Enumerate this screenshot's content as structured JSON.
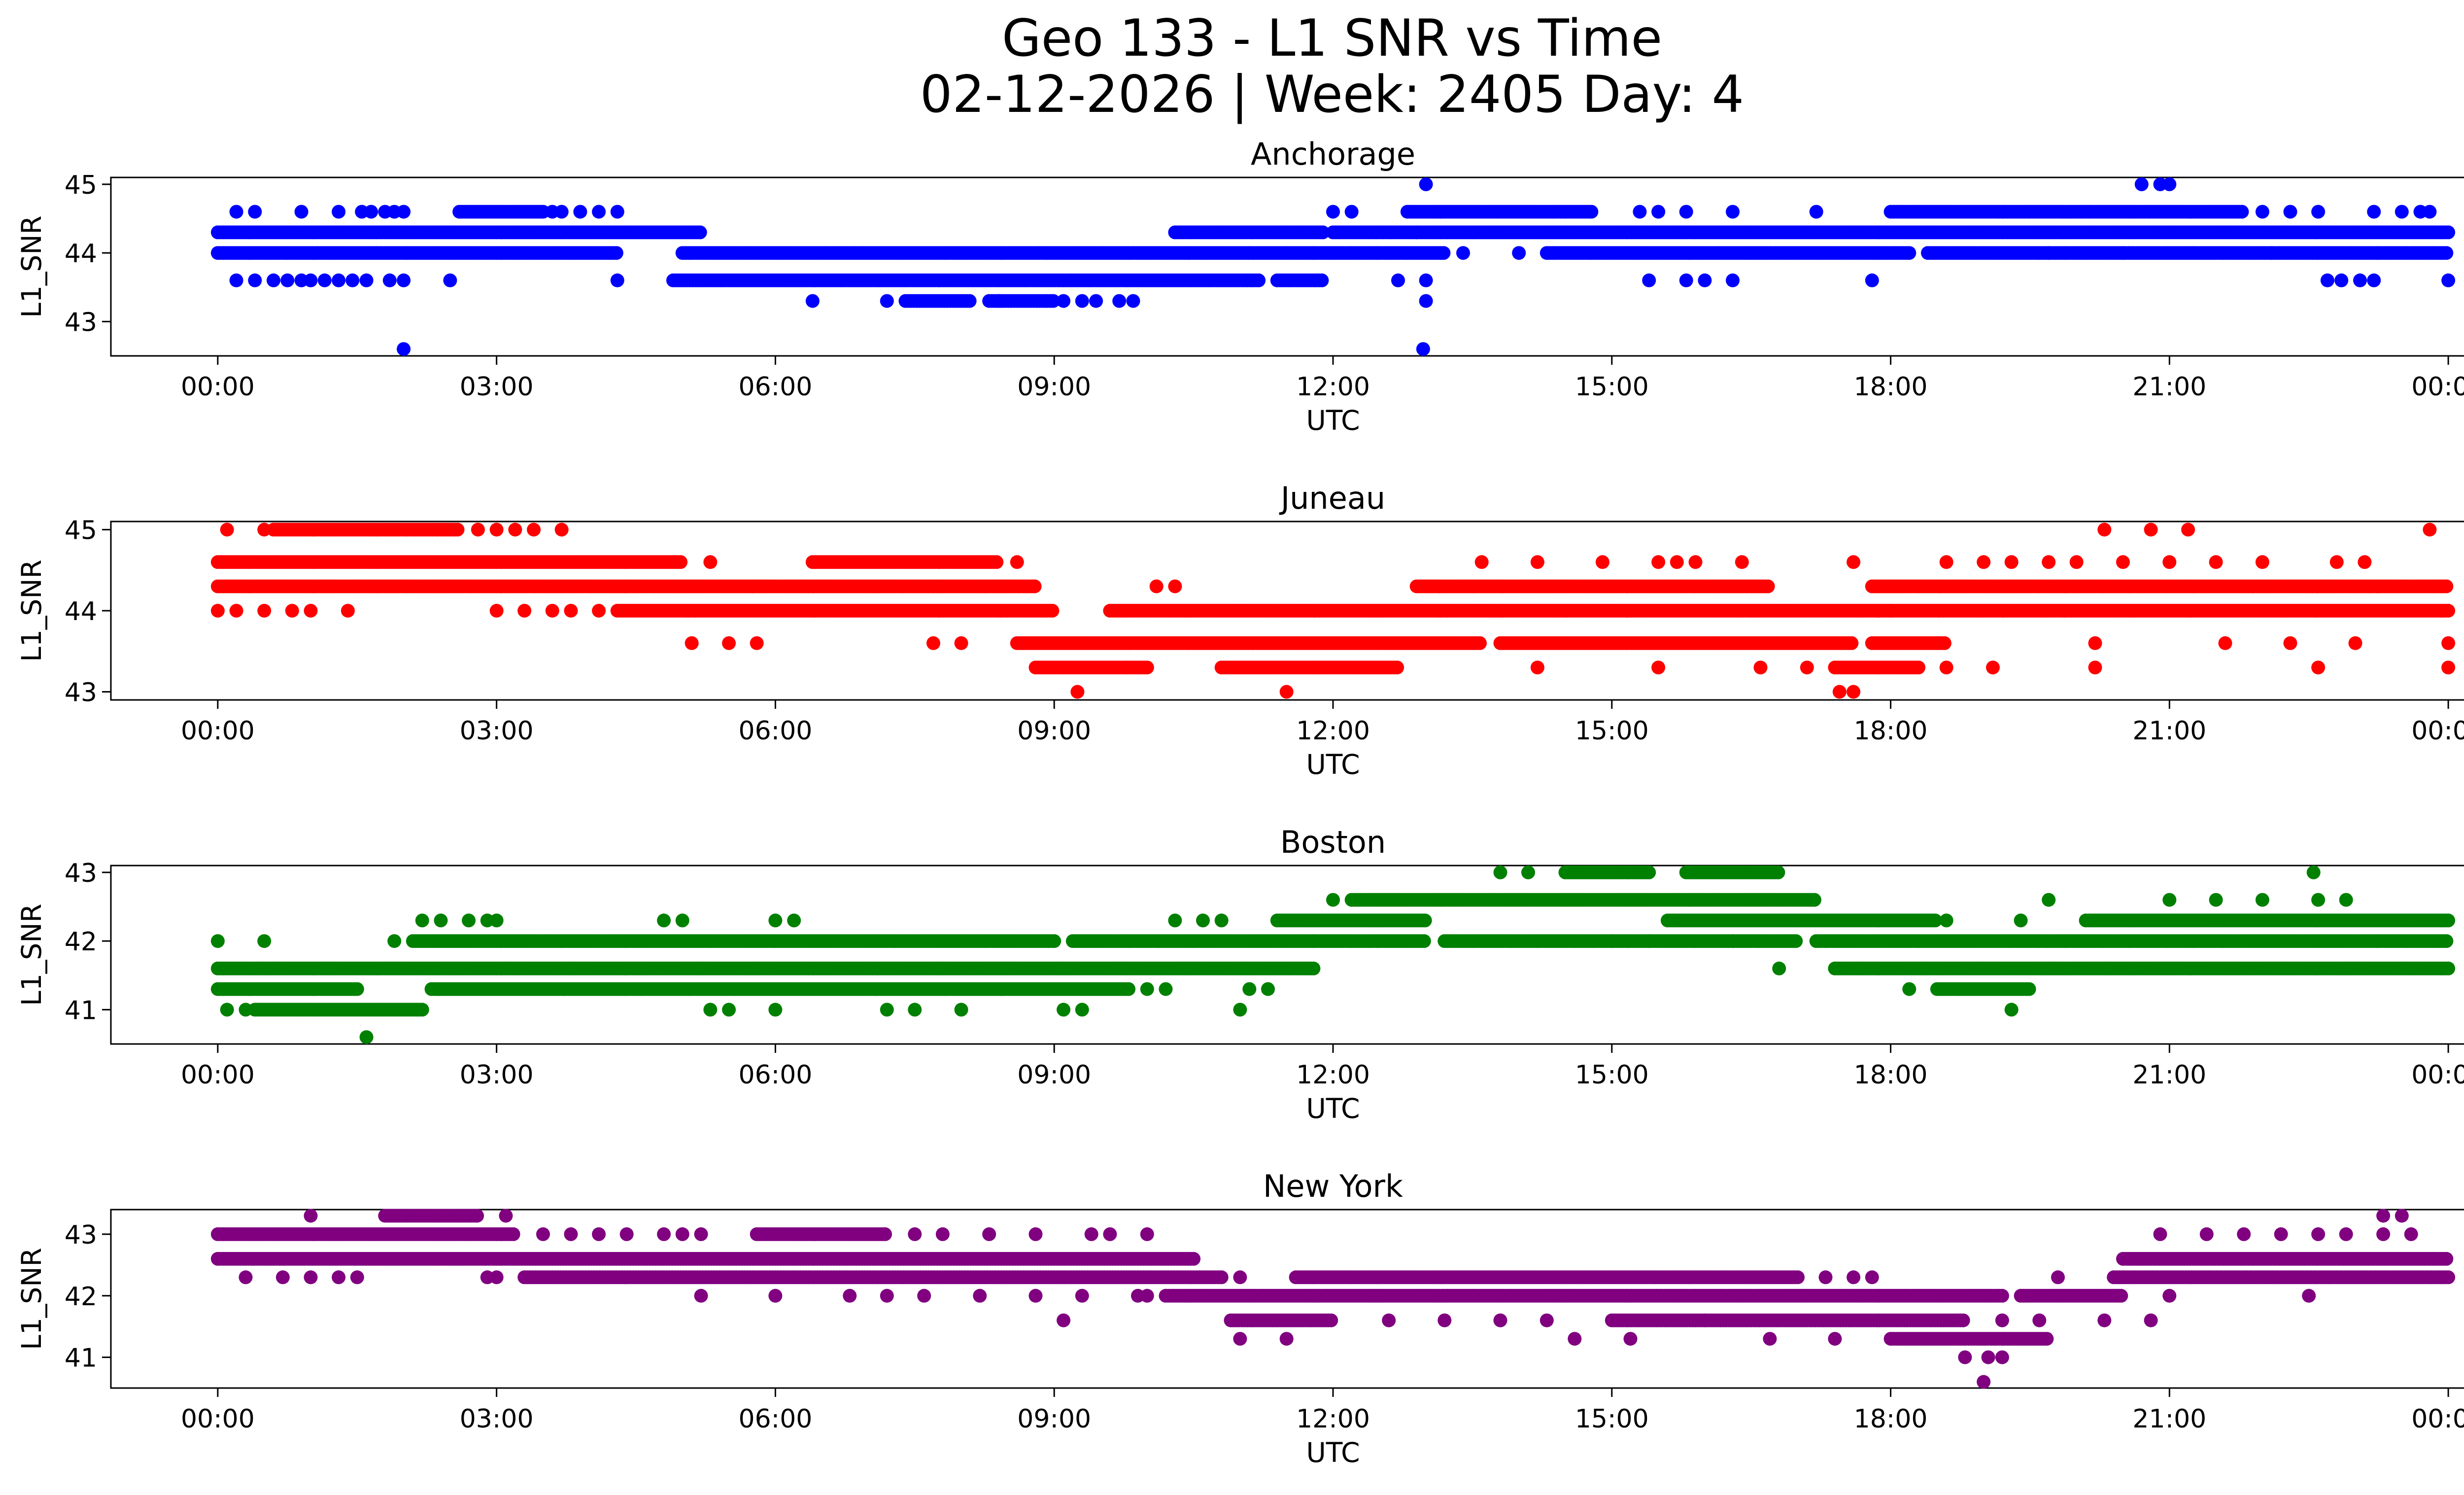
{
  "chart_data": {
    "type": "scatter",
    "title": "Geo 133 - L1 SNR vs Time",
    "subtitle": "02-12-2026 | Week: 2405 Day: 4",
    "xlabel": "UTC",
    "x_ticks": [
      "00:00",
      "03:00",
      "06:00",
      "09:00",
      "12:00",
      "15:00",
      "18:00",
      "21:00",
      "00:00"
    ],
    "x_range_hours": [
      -1.15,
      25.15
    ],
    "panels": [
      {
        "name": "Anchorage",
        "title": "Anchorage",
        "ylabel": "L1_SNR",
        "color": "#0000ff",
        "ylim": [
          42.5,
          45.1
        ],
        "yticks": [
          43,
          44,
          45
        ],
        "level_points": [
          {
            "y": 44.3,
            "segments": [
              [
                0.0,
                5.2
              ],
              [
                10.3,
                11.9
              ],
              [
                12.0,
                24.0
              ]
            ],
            "sparse": [
              12.9
            ]
          },
          {
            "y": 44.0,
            "segments": [
              [
                0.0,
                4.3
              ],
              [
                5.0,
                13.2
              ],
              [
                14.3,
                18.2
              ],
              [
                18.4,
                24.0
              ]
            ],
            "sparse": [
              13.4,
              14.0,
              19.7,
              20.5,
              22.1
            ]
          },
          {
            "y": 43.6,
            "segments": [
              [
                4.9,
                11.2
              ],
              [
                11.4,
                11.9
              ]
            ],
            "sparse": [
              0.2,
              0.4,
              0.6,
              0.75,
              0.9,
              1.0,
              1.15,
              1.3,
              1.45,
              1.6,
              1.85,
              2.0,
              2.5,
              4.3,
              12.7,
              13.0,
              15.4,
              15.8,
              16.0,
              16.3,
              17.8,
              22.7,
              22.85,
              23.05,
              23.2,
              24.0
            ]
          },
          {
            "y": 44.6,
            "segments": [
              [
                2.6,
                3.5
              ],
              [
                12.8,
                14.8
              ],
              [
                18.0,
                21.8
              ]
            ],
            "sparse": [
              0.2,
              0.4,
              0.9,
              1.3,
              1.55,
              1.65,
              1.8,
              1.9,
              2.0,
              3.6,
              3.7,
              3.9,
              4.1,
              4.3,
              12.0,
              12.2,
              15.3,
              15.5,
              15.8,
              16.3,
              17.2,
              22.0,
              22.3,
              22.6,
              23.2,
              23.5,
              23.7,
              23.8
            ]
          },
          {
            "y": 43.3,
            "segments": [
              [
                7.4,
                8.1
              ],
              [
                8.3,
                9.0
              ]
            ],
            "sparse": [
              6.4,
              7.2,
              8.4,
              9.1,
              9.3,
              9.45,
              9.7,
              9.85,
              13.0
            ]
          },
          {
            "y": 45.0,
            "segments": [],
            "sparse": [
              13.0,
              20.7,
              20.9,
              21.0
            ]
          },
          {
            "y": 42.6,
            "segments": [],
            "sparse": [
              2.0,
              12.97
            ]
          }
        ]
      },
      {
        "name": "Juneau",
        "title": "Juneau",
        "ylabel": "L1_SNR",
        "color": "#ff0000",
        "ylim": [
          42.9,
          45.1
        ],
        "yticks": [
          43,
          44,
          45
        ],
        "level_points": [
          {
            "y": 44.3,
            "segments": [
              [
                0.0,
                8.8
              ],
              [
                12.9,
                16.7
              ],
              [
                17.8,
                24.0
              ]
            ],
            "sparse": [
              10.1,
              10.3
            ]
          },
          {
            "y": 44.6,
            "segments": [
              [
                0.0,
                5.0
              ],
              [
                6.4,
                8.4
              ]
            ],
            "sparse": [
              5.3,
              8.6,
              13.6,
              14.2,
              14.9,
              15.5,
              15.7,
              15.9,
              16.4,
              17.6,
              18.6,
              19.0,
              19.3,
              19.7,
              20.0,
              20.5,
              21.0,
              21.5,
              22.0,
              22.8,
              23.1
            ]
          },
          {
            "y": 44.0,
            "segments": [
              [
                4.3,
                9.0
              ],
              [
                9.6,
                18.0
              ],
              [
                18.0,
                24.0
              ]
            ],
            "sparse": [
              0.0,
              0.2,
              0.5,
              0.8,
              1.0,
              1.4,
              3.0,
              3.3,
              3.6,
              3.8,
              4.1
            ]
          },
          {
            "y": 43.6,
            "segments": [
              [
                8.6,
                13.6
              ],
              [
                13.8,
                17.6
              ],
              [
                17.8,
                18.6
              ]
            ],
            "sparse": [
              5.1,
              5.5,
              5.8,
              7.7,
              8.0,
              20.2,
              21.6,
              22.3,
              23.0,
              24.0
            ]
          },
          {
            "y": 45.0,
            "segments": [
              [
                0.6,
                2.6
              ]
            ],
            "sparse": [
              0.1,
              0.5,
              2.8,
              3.0,
              3.2,
              3.4,
              3.7,
              20.3,
              20.8,
              21.2,
              23.8
            ]
          },
          {
            "y": 43.3,
            "segments": [
              [
                8.8,
                10.0
              ],
              [
                10.8,
                12.7
              ],
              [
                17.4,
                18.3
              ]
            ],
            "sparse": [
              14.2,
              15.5,
              16.6,
              17.1,
              18.6,
              19.1,
              20.2,
              22.6,
              24.0
            ]
          },
          {
            "y": 43.0,
            "segments": [],
            "sparse": [
              9.25,
              11.5,
              17.45,
              17.6
            ]
          }
        ]
      },
      {
        "name": "Boston",
        "title": "Boston",
        "ylabel": "L1_SNR",
        "color": "#008000",
        "ylim": [
          40.5,
          43.1
        ],
        "yticks": [
          41,
          42,
          43
        ],
        "level_points": [
          {
            "y": 41.6,
            "segments": [
              [
                0.0,
                11.8
              ],
              [
                17.4,
                24.0
              ]
            ],
            "sparse": [
              16.8
            ]
          },
          {
            "y": 42.0,
            "segments": [
              [
                2.1,
                9.0
              ],
              [
                9.2,
                13.0
              ],
              [
                13.2,
                17.0
              ],
              [
                17.2,
                24.0
              ]
            ],
            "sparse": [
              0.0,
              0.5,
              1.9,
              15.0,
              15.4,
              16.3
            ]
          },
          {
            "y": 41.3,
            "segments": [
              [
                0.0,
                1.5
              ],
              [
                2.3,
                9.8
              ],
              [
                18.5,
                19.5
              ]
            ],
            "sparse": [
              10.0,
              10.2,
              11.1,
              11.3,
              18.2
            ]
          },
          {
            "y": 41.0,
            "segments": [
              [
                0.4,
                2.2
              ]
            ],
            "sparse": [
              0.1,
              0.3,
              5.3,
              5.5,
              6.0,
              7.2,
              7.5,
              8.0,
              9.1,
              9.3,
              11.0,
              19.3
            ]
          },
          {
            "y": 42.3,
            "segments": [
              [
                11.4,
                13.0
              ],
              [
                15.6,
                18.5
              ],
              [
                20.1,
                24.0
              ]
            ],
            "sparse": [
              2.2,
              2.4,
              2.7,
              2.9,
              3.0,
              4.8,
              5.0,
              6.0,
              6.2,
              10.3,
              10.6,
              10.8,
              18.6,
              19.4
            ]
          },
          {
            "y": 42.6,
            "segments": [
              [
                12.2,
                17.2
              ]
            ],
            "sparse": [
              12.0,
              19.7,
              21.0,
              21.5,
              22.0,
              22.6,
              22.9
            ]
          },
          {
            "y": 43.0,
            "segments": [
              [
                14.5,
                15.4
              ],
              [
                15.8,
                16.8
              ]
            ],
            "sparse": [
              13.8,
              14.1,
              22.55
            ]
          },
          {
            "y": 40.6,
            "segments": [],
            "sparse": [
              1.6
            ]
          }
        ]
      },
      {
        "name": "New York",
        "title": "New York",
        "ylabel": "L1_SNR",
        "color": "#800080",
        "ylim": [
          40.5,
          43.4
        ],
        "yticks": [
          41,
          42,
          43
        ],
        "level_points": [
          {
            "y": 42.6,
            "segments": [
              [
                0.0,
                10.5
              ],
              [
                20.5,
                24.0
              ]
            ],
            "sparse": []
          },
          {
            "y": 42.3,
            "segments": [
              [
                3.3,
                10.8
              ],
              [
                11.6,
                17.0
              ],
              [
                20.4,
                24.0
              ]
            ],
            "sparse": [
              0.3,
              0.7,
              1.0,
              1.3,
              1.5,
              2.9,
              3.0,
              11.0,
              17.3,
              17.6,
              17.8,
              19.8
            ]
          },
          {
            "y": 43.0,
            "segments": [
              [
                0.0,
                3.2
              ],
              [
                5.8,
                7.2
              ]
            ],
            "sparse": [
              3.5,
              3.8,
              4.1,
              4.4,
              4.8,
              5.0,
              5.2,
              7.5,
              7.8,
              8.3,
              8.8,
              9.4,
              9.6,
              10.0,
              20.9,
              21.4,
              21.8,
              22.2,
              22.6,
              22.9,
              23.3,
              23.6
            ]
          },
          {
            "y": 42.0,
            "segments": [
              [
                10.2,
                19.2
              ],
              [
                19.4,
                20.5
              ]
            ],
            "sparse": [
              5.2,
              6.0,
              6.8,
              7.2,
              7.6,
              8.2,
              8.8,
              9.3,
              9.9,
              10.0,
              21.0,
              22.5
            ]
          },
          {
            "y": 41.6,
            "segments": [
              [
                10.9,
                12.0
              ],
              [
                15.0,
                18.8
              ]
            ],
            "sparse": [
              9.1,
              12.6,
              13.2,
              13.8,
              14.3,
              16.0,
              19.2,
              19.6,
              20.3,
              20.8
            ]
          },
          {
            "y": 41.3,
            "segments": [
              [
                18.0,
                19.7
              ]
            ],
            "sparse": [
              11.0,
              11.5,
              14.6,
              15.2,
              16.7,
              17.4
            ]
          },
          {
            "y": 43.3,
            "segments": [
              [
                1.8,
                2.8
              ]
            ],
            "sparse": [
              1.0,
              3.1,
              23.3,
              23.5
            ]
          },
          {
            "y": 41.0,
            "segments": [],
            "sparse": [
              18.8,
              19.05,
              19.2
            ]
          },
          {
            "y": 40.6,
            "segments": [],
            "sparse": [
              19.0
            ]
          }
        ]
      }
    ]
  }
}
